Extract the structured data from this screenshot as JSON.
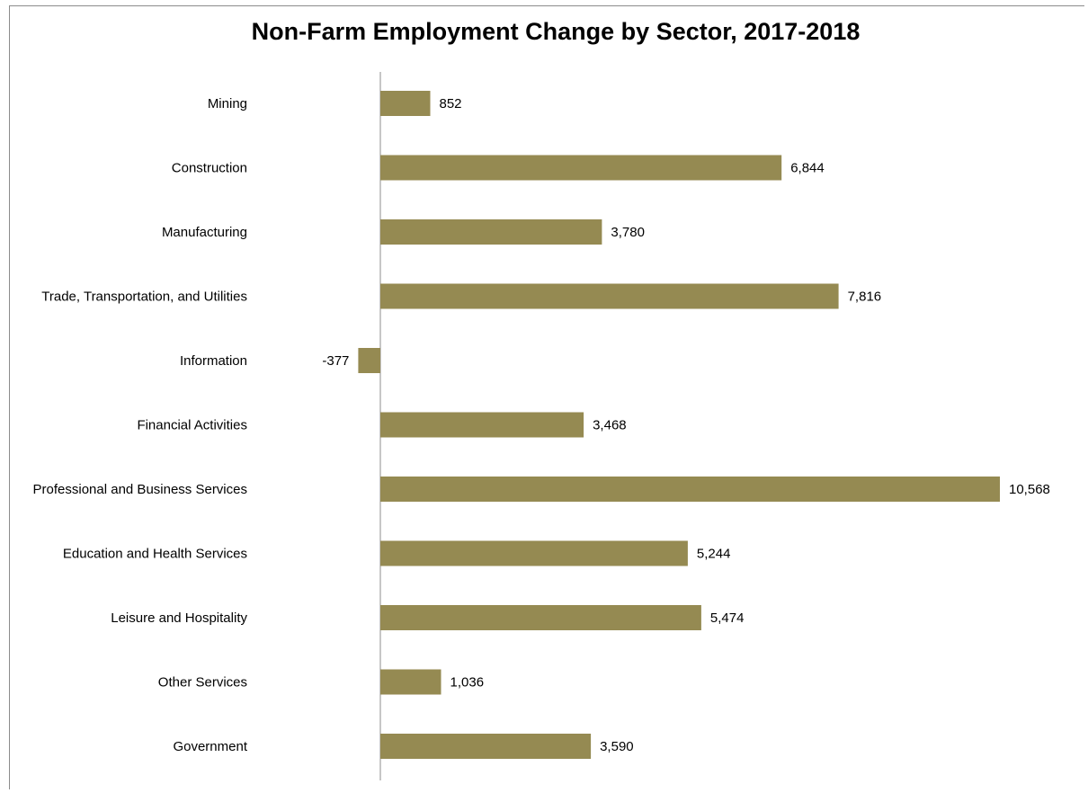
{
  "chart_data": {
    "type": "bar",
    "orientation": "horizontal",
    "title": "Non-Farm Employment Change by Sector, 2017-2018",
    "xlabel": "",
    "ylabel": "",
    "categories": [
      "Mining",
      "Construction",
      "Manufacturing",
      "Trade, Transportation, and Utilities",
      "Information",
      "Financial Activities",
      "Professional and Business Services",
      "Education and Health Services",
      "Leisure and Hospitality",
      "Other Services",
      "Government"
    ],
    "values": [
      852,
      6844,
      3780,
      7816,
      -377,
      3468,
      10568,
      5244,
      5474,
      1036,
      3590
    ],
    "data_labels": [
      "852",
      "6,844",
      "3,780",
      "7,816",
      "-377",
      "3,468",
      "10,568",
      "5,244",
      "5,474",
      "1,036",
      "3,590"
    ],
    "bar_color": "#958a52",
    "axis_color": "#8c8c8c",
    "grid": false,
    "legend": "none"
  }
}
